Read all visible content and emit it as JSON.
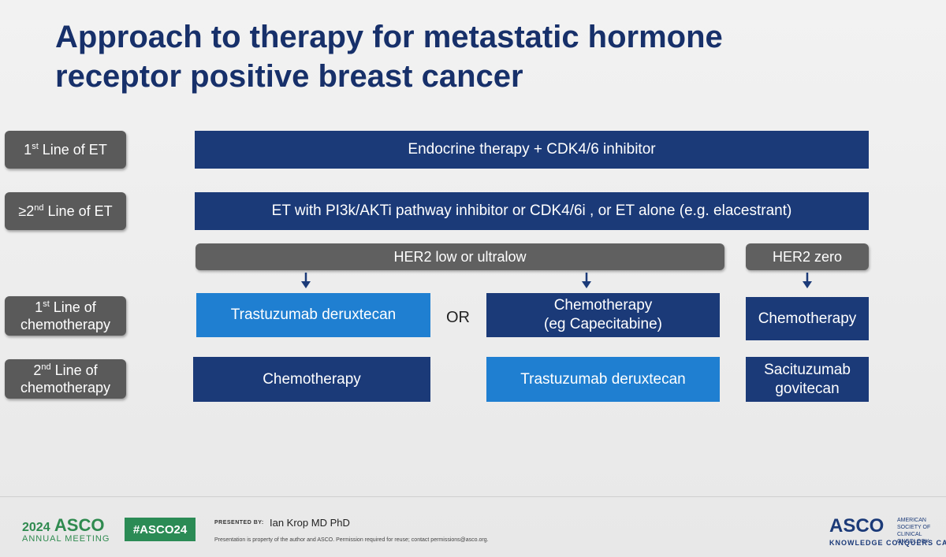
{
  "title": {
    "line1": "Approach to therapy for metastatic hormone",
    "line2": "receptor positive breast cancer"
  },
  "rows": {
    "line1_et": {
      "ord": "1",
      "sup": "st",
      "text": "Line of ET"
    },
    "line2_et": {
      "ord": "≥2",
      "sup": "nd",
      "text": "Line of ET"
    },
    "line1_chemo": {
      "ord": "1",
      "sup": "st",
      "text": "Line of",
      "text2": "chemotherapy"
    },
    "line2_chemo": {
      "ord": "2",
      "sup": "nd",
      "text": "Line of",
      "text2": "chemotherapy"
    }
  },
  "boxes": {
    "endocrine_cdk": "Endocrine therapy + CDK4/6 inhibitor",
    "et_pi3k": "ET with PI3k/AKTi pathway inhibitor or CDK4/6i , or ET  alone (e.g. elacestrant)",
    "her2_low": "HER2 low or ultralow",
    "her2_zero": "HER2 zero",
    "tdxd_1": "Trastuzumab deruxtecan",
    "or_text": "OR",
    "chemo_cape_1": "Chemotherapy",
    "chemo_cape_2": "(eg Capecitabine)",
    "chemo_zero": "Chemotherapy",
    "chemo_2nd": "Chemotherapy",
    "tdxd_2": "Trastuzumab deruxtecan",
    "sacituzumab_1": "Sacituzumab",
    "sacituzumab_2": "govitecan"
  },
  "footer": {
    "year": "2024",
    "asco": "ASCO",
    "annual": "ANNUAL MEETING",
    "hashtag": "#ASCO24",
    "presented_by": "PRESENTED BY:",
    "presenter": "Ian Krop MD PhD",
    "notice": "Presentation is property of the author and ASCO. Permission required for reuse; contact permissions@asco.org.",
    "logo": "ASCO",
    "society": "AMERICAN SOCIETY OF CLINICAL ONCOLOGY",
    "tagline": "KNOWLEDGE CONQUERS CANCER"
  },
  "colors": {
    "title": "#17306a",
    "dark_box": "#1b3a78",
    "light_box": "#1f7fd1",
    "label_gray": "#5a5a5a",
    "asco_green": "#2f8a4f"
  }
}
